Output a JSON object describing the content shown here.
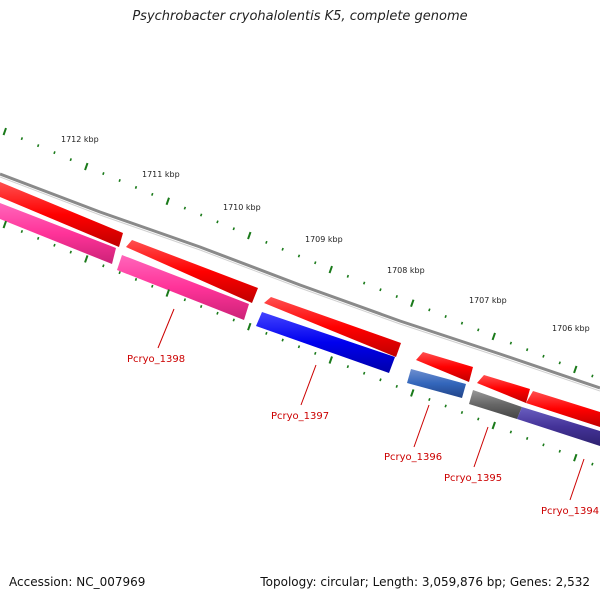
{
  "title": "Psychrobacter cryohalolentis K5, complete genome",
  "footer": {
    "accession": "Accession: NC_007969",
    "stats": "Topology: circular; Length: 3,059,876 bp; Genes: 2,532"
  },
  "ruler_labels": [
    "1712 kbp",
    "1711 kbp",
    "1710 kbp",
    "1709 kbp",
    "1708 kbp",
    "1707 kbp",
    "1706 kbp"
  ],
  "gene_labels": [
    "Pcryo_1398",
    "Pcryo_1397",
    "Pcryo_1396",
    "Pcryo_1395",
    "Pcryo_1394"
  ],
  "colors": {
    "backbone": "#888888",
    "forward_feature": "#ff0000",
    "gene_1398": "#ff3399",
    "gene_1397": "#0000ee",
    "gene_1396": "#3366bb",
    "gene_1395": "#666666",
    "gene_1394": "#443399",
    "label": "#cc0000",
    "ticks": "#1a7a1a"
  }
}
